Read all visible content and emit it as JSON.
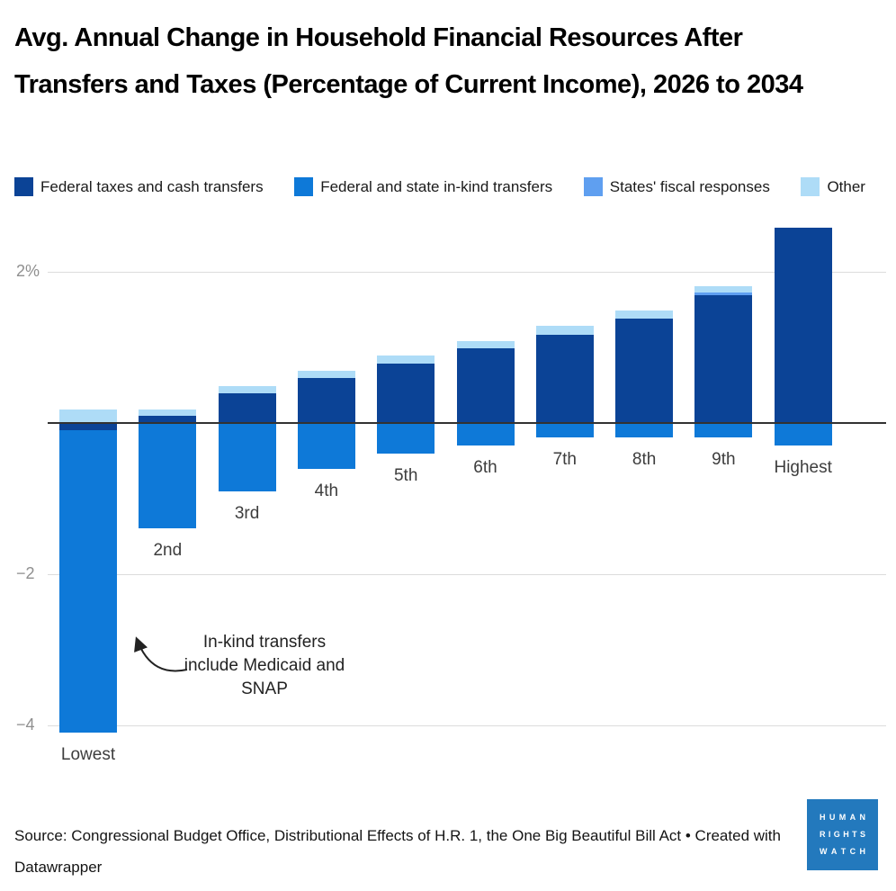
{
  "title": "Avg. Annual Change in Household Financial Resources After Transfers and Taxes (Percentage of Current Income), 2026 to 2034",
  "chart_data": {
    "type": "bar",
    "subtype": "stacked-column",
    "unit": "percent of current income",
    "categories": [
      "Lowest",
      "2nd",
      "3rd",
      "4th",
      "5th",
      "6th",
      "7th",
      "8th",
      "9th",
      "Highest"
    ],
    "series": [
      {
        "key": "cash",
        "name": "Federal taxes and cash transfers",
        "color": "#0b4396",
        "values": [
          -0.1,
          0.09,
          0.39,
          0.59,
          0.79,
          0.99,
          1.17,
          1.38,
          1.69,
          2.58
        ]
      },
      {
        "key": "inkind",
        "name": "Federal and state in-kind transfers",
        "color": "#0e79d8",
        "values": [
          -4.0,
          -1.39,
          -0.9,
          -0.61,
          -0.4,
          -0.3,
          -0.19,
          -0.19,
          -0.19,
          -0.3
        ]
      },
      {
        "key": "states",
        "name": "States' fiscal responses",
        "color": "#5f9ff0",
        "values": [
          0,
          0,
          0,
          0,
          0,
          0,
          0,
          0,
          0.04,
          0
        ]
      },
      {
        "key": "other",
        "name": "Other",
        "color": "#aedcf7",
        "values": [
          0.18,
          0.09,
          0.1,
          0.1,
          0.1,
          0.09,
          0.11,
          0.11,
          0.08,
          0
        ]
      }
    ],
    "yticks": [
      {
        "label": "2%",
        "value": 2
      },
      {
        "label": "−2",
        "value": -2
      },
      {
        "label": "−4",
        "value": -4
      }
    ],
    "ylim": [
      -4.4,
      2.8
    ],
    "baseline": 0,
    "grid": true,
    "legend_position": "top"
  },
  "annotation": {
    "text": "In-kind transfers include Medicaid and SNAP"
  },
  "footer": {
    "source": "Source: Congressional Budget Office, Distributional Effects of H.R. 1, the One Big Beautiful Bill Act • Created with Datawrapper"
  },
  "logo": {
    "lines": [
      "HUMAN",
      "RIGHTS",
      "WATCH"
    ],
    "color": "#2379bd"
  },
  "style_colors": {
    "gridline": "#dcdcdc",
    "zero_line": "#323232",
    "tick_text": "#8f8f8f"
  }
}
